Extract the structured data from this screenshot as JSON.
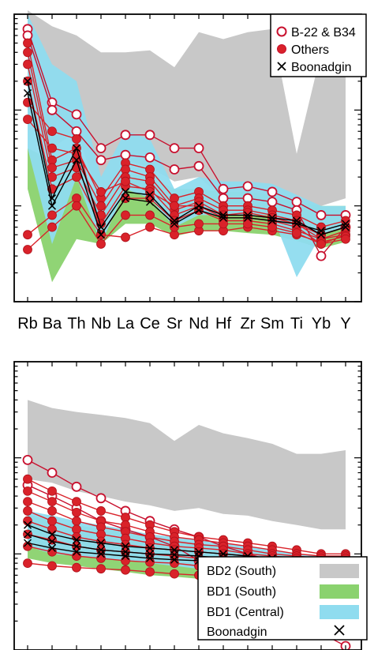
{
  "chart_data": [
    {
      "type": "line",
      "title": "",
      "xlabel": "",
      "ylabel": "",
      "y_scale": "log",
      "categories": [
        "Rb",
        "Ba",
        "Th",
        "Nb",
        "La",
        "Ce",
        "Sr",
        "Nd",
        "Hf",
        "Zr",
        "Sm",
        "Ti",
        "Yb",
        "Y"
      ],
      "ylim": [
        1,
        1000
      ],
      "legend": {
        "position": "top-right",
        "entries": [
          "B-22 & B34",
          "Others",
          "Boonadgin"
        ]
      },
      "bands": [
        {
          "name": "BD2 (South)",
          "color": "#c8c8c8",
          "upper": [
            1100,
            750,
            600,
            400,
            400,
            420,
            280,
            650,
            550,
            650,
            700,
            35,
            400,
            500
          ],
          "lower": [
            100,
            40,
            60,
            11,
            30,
            25,
            18,
            20,
            12,
            12,
            13,
            9,
            10,
            12
          ]
        },
        {
          "name": "BD1 (South)",
          "color": "#8ad26e",
          "upper": [
            40,
            30,
            30,
            10,
            22,
            20,
            15,
            15,
            14,
            14,
            13,
            11,
            10,
            10
          ],
          "lower": [
            15,
            1.6,
            4.5,
            4,
            6.5,
            6.5,
            4.8,
            5.5,
            5.5,
            5.2,
            5.0,
            4.3,
            3.6,
            4.2
          ]
        },
        {
          "name": "BD1 (Central)",
          "color": "#8fdcef",
          "upper": [
            1000,
            300,
            200,
            20,
            60,
            50,
            15,
            20,
            18,
            18,
            17,
            13,
            10,
            10
          ],
          "lower": [
            40,
            4,
            20,
            4,
            15,
            12,
            6,
            8,
            8,
            8,
            8,
            1.8,
            5,
            6
          ]
        }
      ],
      "series": [
        {
          "name": "B-22 & B34",
          "marker": "open-circle",
          "color": "#c8102e",
          "lines": [
            [
              700,
              120,
              90,
              40,
              55,
              55,
              40,
              40,
              15,
              16,
              14,
              11,
              8,
              8
            ],
            [
              600,
              100,
              60,
              30,
              34,
              32,
              24,
              26,
              12,
              12,
              11,
              9,
              3,
              6
            ]
          ]
        },
        {
          "name": "Others",
          "marker": "filled-circle",
          "color": "#d9222a",
          "lines": [
            [
              500,
              30,
              40,
              12,
              28,
              24,
              12,
              14,
              10,
              10,
              9,
              8,
              6,
              7
            ],
            [
              400,
              25,
              30,
              10,
              24,
              20,
              10,
              12,
              9,
              9,
              8,
              7,
              5,
              6
            ],
            [
              300,
              20,
              25,
              8,
              20,
              18,
              9,
              11,
              8,
              8,
              7.5,
              6.5,
              4.5,
              5.5
            ],
            [
              200,
              15,
              20,
              6.5,
              16,
              15,
              8,
              10,
              7.5,
              7.5,
              7,
              6,
              4,
              5
            ],
            [
              120,
              60,
              50,
              5,
              12,
              12,
              7,
              9,
              7,
              7,
              6.5,
              5.5,
              4.5,
              5
            ],
            [
              80,
              40,
              35,
              14,
              18,
              14,
              10,
              10,
              8,
              8.5,
              7.5,
              6.5,
              5,
              6
            ],
            [
              5,
              8,
              12,
              5,
              4.7,
              6,
              5,
              5.5,
              5.5,
              6,
              5.5,
              5,
              4.2,
              4.8
            ],
            [
              3.5,
              6,
              10,
              4,
              8,
              8,
              6,
              6.5,
              6.5,
              6.5,
              6,
              5.2,
              4,
              4.5
            ]
          ]
        },
        {
          "name": "Boonadgin",
          "marker": "x",
          "color": "#000000",
          "lines": [
            [
              200,
              12,
              40,
              6,
              14,
              13,
              7,
              10,
              8,
              8,
              7.5,
              7,
              5,
              6
            ],
            [
              150,
              10,
              30,
              5,
              12,
              11,
              6.5,
              9,
              7.5,
              7.5,
              7,
              6.5,
              5.5,
              6.5
            ]
          ]
        }
      ]
    },
    {
      "type": "line",
      "title": "",
      "xlabel": "",
      "ylabel": "",
      "y_scale": "log",
      "categories": [
        "Rb",
        "Ba",
        "Th",
        "Nb",
        "La",
        "Ce",
        "Sr",
        "Nd",
        "Hf",
        "Zr",
        "Sm",
        "Ti",
        "Yb",
        "Y"
      ],
      "ylim": [
        1,
        1000
      ],
      "bands": [
        {
          "name": "BD2 (South)",
          "color": "#c8c8c8",
          "upper": [
            400,
            330,
            300,
            280,
            260,
            230,
            150,
            220,
            180,
            160,
            140,
            110,
            110,
            120
          ],
          "lower": [
            60,
            55,
            45,
            40,
            35,
            32,
            28,
            30,
            26,
            25,
            22,
            20,
            18,
            18
          ]
        },
        {
          "name": "BD1 (South)",
          "color": "#8ad26e",
          "upper": [
            26,
            22,
            20,
            18,
            17,
            15,
            14,
            13,
            12,
            11,
            10,
            9.5,
            9,
            9
          ],
          "lower": [
            9,
            8,
            7.5,
            7,
            6.5,
            6,
            5.8,
            5.5,
            5,
            4.8,
            4.5,
            4.3,
            4,
            4
          ]
        },
        {
          "name": "BD1 (Central)",
          "color": "#8fdcef",
          "upper": [
            28,
            25,
            22,
            20,
            18,
            16,
            15,
            14,
            13,
            12,
            11,
            10,
            9.5,
            9.5
          ],
          "lower": [
            12,
            10,
            9.5,
            9,
            8.5,
            8,
            7.5,
            7,
            6.5,
            6,
            5.8,
            5.5,
            5,
            5
          ]
        }
      ],
      "series": [
        {
          "name": "B-22 & B34",
          "marker": "open-circle",
          "color": "#c8102e",
          "lines": [
            [
              95,
              70,
              50,
              38,
              28,
              22,
              18,
              15,
              12,
              10,
              8.5,
              7.5,
              6.5,
              6
            ],
            [
              52,
              40,
              30,
              22,
              18,
              15,
              12,
              8.5,
              7,
              5.2,
              3.3,
              2.5,
              1.5,
              1.1
            ]
          ]
        },
        {
          "name": "Others",
          "marker": "filled-circle",
          "color": "#d9222a",
          "lines": [
            [
              60,
              45,
              35,
              28,
              24,
              20,
              17,
              15,
              14,
              13,
              12,
              11,
              10,
              10
            ],
            [
              45,
              35,
              27,
              22,
              20,
              17,
              15,
              14,
              13,
              12,
              11,
              10,
              9.5,
              9.5
            ],
            [
              35,
              28,
              22,
              19,
              17,
              15,
              13.5,
              12.5,
              12,
              11,
              10,
              9.5,
              9,
              9
            ],
            [
              28,
              22,
              18,
              16,
              14.5,
              13,
              12,
              11.5,
              11,
              10,
              9.5,
              9,
              8.5,
              8.5
            ],
            [
              22,
              18,
              15,
              13.5,
              12.5,
              11.5,
              11,
              10.5,
              10,
              9.5,
              9,
              8.5,
              8,
              8
            ],
            [
              16,
              14,
              12,
              11,
              10.5,
              10,
              9.5,
              9,
              8.5,
              8.3,
              8,
              7.5,
              7,
              7
            ],
            [
              12,
              10.5,
              9.5,
              9,
              8.5,
              8.2,
              8,
              7.5,
              7.2,
              7,
              6.8,
              6.5,
              6,
              6
            ],
            [
              8,
              7.5,
              7.2,
              7,
              6.8,
              6.5,
              6.2,
              6,
              5.8,
              5.5,
              5.2,
              5,
              4.8,
              4.8
            ]
          ]
        },
        {
          "name": "Boonadgin",
          "marker": "x",
          "color": "#000000",
          "lines": [
            [
              20,
              16,
              14,
              13,
              12,
              11.5,
              11,
              10.5,
              10,
              9.5,
              9,
              8.5,
              8,
              8
            ],
            [
              16,
              13.5,
              12,
              11,
              10.5,
              10,
              9.8,
              9.5,
              9,
              8.7,
              8.3,
              8,
              7.5,
              7.5
            ],
            [
              13,
              11.5,
              10.5,
              10,
              9.5,
              9,
              8.7,
              8.5,
              8.2,
              8,
              7.7,
              7.3,
              7,
              7
            ]
          ]
        }
      ],
      "legend": {
        "position": "bottom-right",
        "entries": [
          {
            "label": "BD2 (South)",
            "swatch": "#c8c8c8"
          },
          {
            "label": "BD1 (South)",
            "swatch": "#8ad26e"
          },
          {
            "label": "BD1 (Central)",
            "swatch": "#8fdcef"
          },
          {
            "label": "Boonadgin",
            "swatch": "x"
          }
        ]
      }
    }
  ]
}
